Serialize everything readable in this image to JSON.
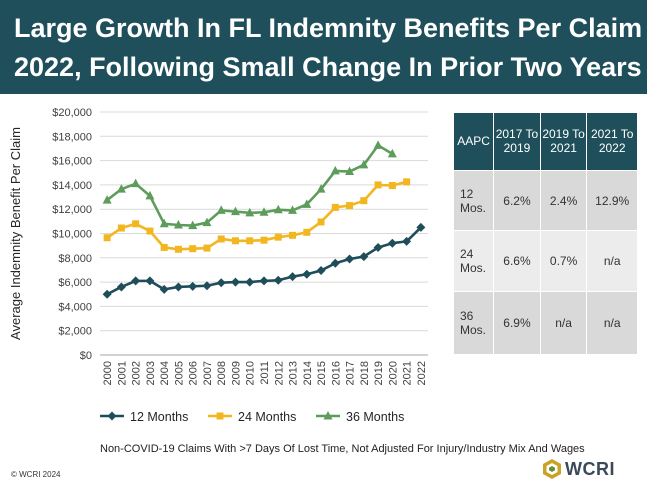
{
  "title": {
    "line1": "Large Growth In FL Indemnity Benefits Per Claim In",
    "line2": "2022, Following Small Change In Prior Two Years"
  },
  "colors": {
    "banner": "#1e4f5b",
    "series_12": "#1f4e5a",
    "series_24": "#f2b620",
    "series_36": "#5e9c5c"
  },
  "chart_data": {
    "type": "line",
    "ylabel": "Average Indemnity Benefit Per Claim",
    "xlabel": "",
    "ylim": [
      0,
      20000
    ],
    "yticks": [
      0,
      2000,
      4000,
      6000,
      8000,
      10000,
      12000,
      14000,
      16000,
      18000,
      20000
    ],
    "ytick_labels": [
      "$0",
      "$2,000",
      "$4,000",
      "$6,000",
      "$8,000",
      "$10,000",
      "$12,000",
      "$14,000",
      "$16,000",
      "$18,000",
      "$20,000"
    ],
    "categories": [
      "2000",
      "2001",
      "2002",
      "2003",
      "2004",
      "2005",
      "2006",
      "2007",
      "2008",
      "2009",
      "2010",
      "2011",
      "2012",
      "2013",
      "2014",
      "2015",
      "2016",
      "2017",
      "2018",
      "2019",
      "2020",
      "2021",
      "2022"
    ],
    "grid": true,
    "legend_position": "bottom",
    "series": [
      {
        "name": "12 Months",
        "marker": "diamond",
        "values": [
          5000,
          5600,
          6100,
          6100,
          5400,
          5600,
          5650,
          5700,
          5950,
          6000,
          6000,
          6100,
          6150,
          6450,
          6650,
          6950,
          7550,
          7900,
          8100,
          8850,
          9200,
          9350,
          10500
        ]
      },
      {
        "name": "24 Months",
        "marker": "square",
        "values": [
          9650,
          10450,
          10800,
          10200,
          8850,
          8700,
          8750,
          8800,
          9550,
          9400,
          9400,
          9450,
          9700,
          9850,
          10100,
          10950,
          12150,
          12300,
          12700,
          14000,
          13950,
          14250,
          null
        ]
      },
      {
        "name": "36 Months",
        "marker": "triangle",
        "values": [
          12750,
          13650,
          14100,
          13100,
          10800,
          10700,
          10650,
          10900,
          11900,
          11800,
          11700,
          11750,
          11950,
          11900,
          12400,
          13650,
          15150,
          15100,
          15650,
          17250,
          16550,
          null,
          null
        ]
      }
    ]
  },
  "table": {
    "headers": [
      "AAPC",
      "2017 To 2019",
      "2019 To 2021",
      "2021 To 2022"
    ],
    "rows": [
      {
        "label": "12 Mos.",
        "v1": "6.2%",
        "v2": "2.4%",
        "v3": "12.9%"
      },
      {
        "label": "24 Mos.",
        "v1": "6.6%",
        "v2": "0.7%",
        "v3": "n/a"
      },
      {
        "label": "36 Mos.",
        "v1": "6.9%",
        "v2": "n/a",
        "v3": "n/a"
      }
    ]
  },
  "footnote": "Non-COVID-19 Claims With >7 Days Of Lost Time, Not Adjusted For Injury/Industry Mix And Wages",
  "copyright": "© WCRI 2024",
  "logo_text": "WCRI"
}
